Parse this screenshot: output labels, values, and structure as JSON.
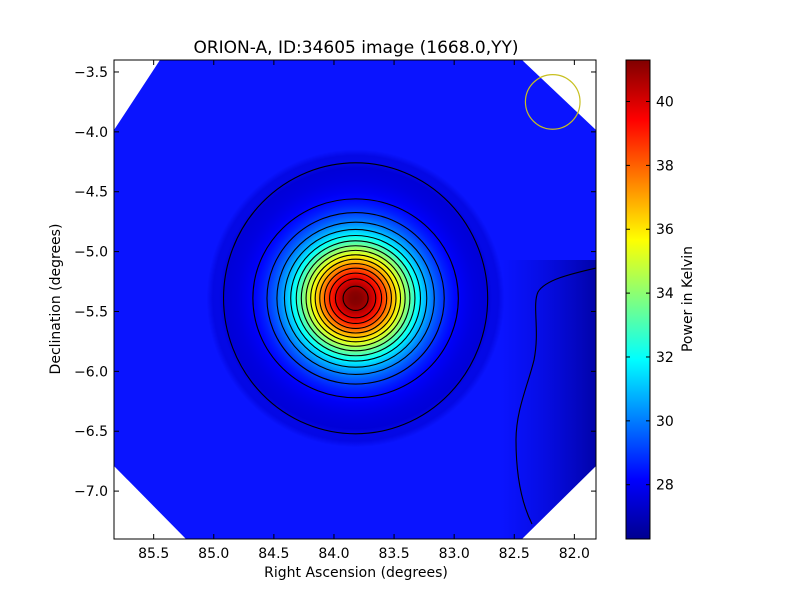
{
  "chart_data": {
    "type": "heatmap",
    "title": "ORION-A, ID:34605 image (1668.0,YY)",
    "xlabel": "Right Ascension (degrees)",
    "ylabel": "Declination (degrees)",
    "xlim": [
      85.83,
      81.82
    ],
    "ylim": [
      -7.4,
      -3.4
    ],
    "x_inverted": true,
    "x_ticks": [
      85.5,
      85.0,
      84.5,
      84.0,
      83.5,
      83.0,
      82.5,
      82.0
    ],
    "x_tick_labels": [
      "85.5",
      "85.0",
      "84.5",
      "84.0",
      "83.5",
      "83.0",
      "82.5",
      "82.0"
    ],
    "y_ticks": [
      -3.5,
      -4.0,
      -4.5,
      -5.0,
      -5.5,
      -6.0,
      -6.5,
      -7.0
    ],
    "y_tick_labels": [
      "−3.5",
      "−4.0",
      "−4.5",
      "−5.0",
      "−5.5",
      "−6.0",
      "−6.5",
      "−7.0"
    ],
    "colorbar": {
      "label": "Power in Kelvin",
      "colormap": "jet",
      "min": 26.3,
      "max": 41.3,
      "ticks": [
        28,
        30,
        32,
        34,
        36,
        38,
        40
      ],
      "tick_labels": [
        "28",
        "30",
        "32",
        "34",
        "36",
        "38",
        "40"
      ]
    },
    "source": {
      "ra": 83.82,
      "dec": -5.39,
      "peak": 41.3,
      "background": 27.5,
      "sigma_ra": 0.35,
      "sigma_dec": 0.34
    },
    "cold_region": {
      "ra_min": 82.1,
      "dec_min": -7.4,
      "dec_max": -5.1,
      "value": 26.3
    },
    "contour_levels": [
      27.6,
      28.2,
      29.0,
      29.9,
      30.8,
      31.7,
      32.6,
      33.5,
      34.4,
      35.3,
      36.2,
      37.1,
      38.0,
      38.9,
      39.8,
      40.7
    ],
    "beam_circle": {
      "ra": 82.18,
      "dec": -3.75,
      "radius_deg": 0.3,
      "color": "#c8c020"
    },
    "grid": false
  }
}
